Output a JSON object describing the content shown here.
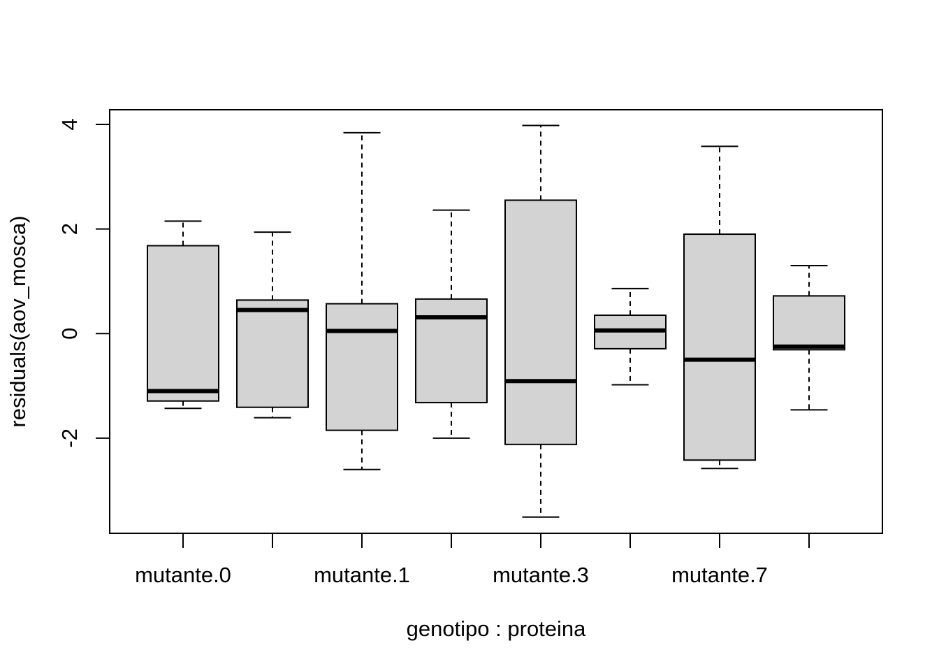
{
  "chart_data": {
    "type": "boxplot",
    "title": "",
    "xlabel": "genotipo : proteina",
    "ylabel": "residuals(aov_mosca)",
    "ylim": [
      -3.82,
      4.28
    ],
    "y_ticks": [
      -2,
      0,
      2,
      4
    ],
    "y_tick_labels": [
      "-2",
      "0",
      "2",
      "4"
    ],
    "x_tick_labels": [
      "mutante.0",
      "",
      "mutante.1",
      "",
      "mutante.3",
      "",
      "mutante.7",
      ""
    ],
    "grid": false,
    "legend": "none",
    "colors": {
      "box_fill": "#d3d3d3",
      "stroke": "#000000"
    },
    "boxes": [
      {
        "min": -1.43,
        "q1": -1.29,
        "median": -1.1,
        "q3": 1.68,
        "max": 2.15
      },
      {
        "min": -1.61,
        "q1": -1.41,
        "median": 0.45,
        "q3": 0.64,
        "max": 1.94
      },
      {
        "min": -2.6,
        "q1": -1.85,
        "median": 0.05,
        "q3": 0.57,
        "max": 3.84
      },
      {
        "min": -2.0,
        "q1": -1.32,
        "median": 0.31,
        "q3": 0.66,
        "max": 2.36
      },
      {
        "min": -3.51,
        "q1": -2.12,
        "median": -0.91,
        "q3": 2.55,
        "max": 3.98
      },
      {
        "min": -0.98,
        "q1": -0.29,
        "median": 0.06,
        "q3": 0.35,
        "max": 0.86
      },
      {
        "min": -2.58,
        "q1": -2.42,
        "median": -0.5,
        "q3": 1.9,
        "max": 3.58
      },
      {
        "min": -1.46,
        "q1": -0.31,
        "median": -0.25,
        "q3": 0.72,
        "max": 1.3
      }
    ]
  }
}
